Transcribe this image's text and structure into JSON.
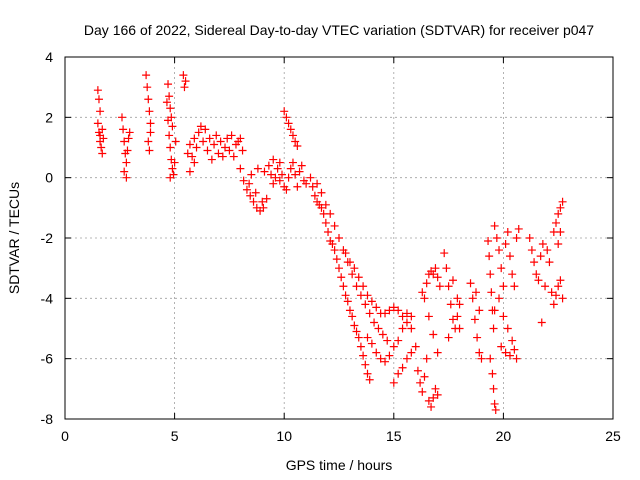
{
  "chart_data": {
    "type": "scatter",
    "title": "Day 166 of 2022, Sidereal Day-to-day VTEC variation (SDTVAR) for receiver p047",
    "xlabel": "GPS time / hours",
    "ylabel": "SDTVAR / TECUs",
    "xlim": [
      0,
      25
    ],
    "ylim": [
      -8,
      4
    ],
    "xticks": [
      0,
      5,
      10,
      15,
      20,
      25
    ],
    "xtick_labels": [
      "0",
      "5",
      "10",
      "15",
      "20",
      "25"
    ],
    "yticks": [
      -8,
      -6,
      -4,
      -2,
      0,
      2,
      4
    ],
    "ytick_labels": [
      "-8",
      "-6",
      "-4",
      "-2",
      "0",
      "2",
      "4"
    ],
    "grid": true,
    "marker": "+",
    "color": "#ff0000",
    "series": [
      {
        "name": "SDTVAR",
        "points": [
          [
            1.5,
            2.9
          ],
          [
            1.55,
            2.6
          ],
          [
            1.6,
            2.2
          ],
          [
            1.5,
            1.8
          ],
          [
            1.55,
            1.5
          ],
          [
            1.6,
            1.2
          ],
          [
            1.65,
            1.0
          ],
          [
            1.7,
            0.8
          ],
          [
            1.6,
            1.4
          ],
          [
            1.7,
            1.6
          ],
          [
            1.75,
            1.3
          ],
          [
            2.6,
            2.0
          ],
          [
            2.65,
            1.6
          ],
          [
            2.7,
            1.2
          ],
          [
            2.75,
            0.8
          ],
          [
            2.8,
            0.5
          ],
          [
            2.7,
            0.2
          ],
          [
            2.85,
            0.9
          ],
          [
            2.9,
            1.3
          ],
          [
            2.95,
            1.5
          ],
          [
            2.8,
            0.0
          ],
          [
            3.7,
            3.4
          ],
          [
            3.75,
            3.0
          ],
          [
            3.8,
            2.6
          ],
          [
            3.85,
            2.2
          ],
          [
            3.9,
            1.8
          ],
          [
            3.8,
            1.2
          ],
          [
            3.85,
            0.9
          ],
          [
            3.9,
            1.5
          ],
          [
            4.7,
            3.1
          ],
          [
            4.75,
            2.7
          ],
          [
            4.8,
            2.3
          ],
          [
            4.85,
            2.0
          ],
          [
            4.9,
            1.7
          ],
          [
            4.75,
            1.4
          ],
          [
            4.8,
            1.0
          ],
          [
            4.85,
            0.6
          ],
          [
            4.9,
            0.3
          ],
          [
            4.95,
            0.1
          ],
          [
            4.8,
            0.0
          ],
          [
            5.0,
            0.5
          ],
          [
            5.05,
            1.2
          ],
          [
            4.65,
            2.5
          ],
          [
            4.7,
            1.9
          ],
          [
            5.4,
            3.4
          ],
          [
            5.5,
            3.2
          ],
          [
            5.45,
            3.0
          ],
          [
            5.6,
            0.8
          ],
          [
            5.7,
            1.1
          ],
          [
            5.8,
            0.7
          ],
          [
            5.9,
            1.3
          ],
          [
            6.0,
            1.0
          ],
          [
            6.1,
            1.5
          ],
          [
            6.2,
            1.7
          ],
          [
            6.3,
            1.2
          ],
          [
            6.4,
            1.6
          ],
          [
            6.5,
            0.9
          ],
          [
            6.6,
            1.3
          ],
          [
            6.7,
            0.6
          ],
          [
            6.8,
            1.1
          ],
          [
            6.9,
            1.4
          ],
          [
            7.0,
            0.8
          ],
          [
            7.1,
            1.2
          ],
          [
            7.2,
            0.7
          ],
          [
            7.3,
            1.0
          ],
          [
            7.4,
            1.3
          ],
          [
            7.5,
            0.9
          ],
          [
            7.6,
            1.4
          ],
          [
            7.7,
            0.7
          ],
          [
            7.8,
            1.1
          ],
          [
            7.9,
            1.2
          ],
          [
            8.0,
            1.3
          ],
          [
            8.1,
            0.9
          ],
          [
            5.7,
            0.2
          ],
          [
            5.9,
            0.5
          ],
          [
            8.0,
            0.3
          ],
          [
            8.15,
            -0.1
          ],
          [
            8.3,
            -0.4
          ],
          [
            8.45,
            -0.6
          ],
          [
            8.6,
            -0.8
          ],
          [
            8.75,
            -1.0
          ],
          [
            8.9,
            -1.1
          ],
          [
            9.05,
            -1.0
          ],
          [
            9.2,
            -0.7
          ],
          [
            8.4,
            -0.2
          ],
          [
            8.7,
            -0.5
          ],
          [
            9.0,
            -0.8
          ],
          [
            8.5,
            0.1
          ],
          [
            8.8,
            0.3
          ],
          [
            9.1,
            0.2
          ],
          [
            9.3,
            0.4
          ],
          [
            9.4,
            0.1
          ],
          [
            9.5,
            -0.2
          ],
          [
            9.6,
            0.0
          ],
          [
            9.7,
            0.3
          ],
          [
            9.8,
            0.5
          ],
          [
            9.9,
            0.1
          ],
          [
            10.0,
            -0.3
          ],
          [
            10.1,
            -0.4
          ],
          [
            10.2,
            0.0
          ],
          [
            10.3,
            0.3
          ],
          [
            10.4,
            0.5
          ],
          [
            10.5,
            0.1
          ],
          [
            10.6,
            -0.3
          ],
          [
            10.7,
            0.2
          ],
          [
            10.8,
            0.4
          ],
          [
            10.9,
            -0.1
          ],
          [
            11.0,
            -0.2
          ],
          [
            9.5,
            0.6
          ],
          [
            9.8,
            -0.1
          ],
          [
            10.0,
            2.2
          ],
          [
            10.1,
            2.0
          ],
          [
            10.2,
            1.8
          ],
          [
            10.3,
            1.6
          ],
          [
            10.4,
            1.4
          ],
          [
            10.5,
            1.2
          ],
          [
            10.6,
            1.05
          ],
          [
            11.2,
            0.0
          ],
          [
            11.3,
            -0.3
          ],
          [
            11.4,
            -0.6
          ],
          [
            11.5,
            -0.8
          ],
          [
            11.6,
            -0.9
          ],
          [
            11.7,
            -1.0
          ],
          [
            11.8,
            -1.2
          ],
          [
            11.9,
            -1.5
          ],
          [
            12.0,
            -1.8
          ],
          [
            12.1,
            -2.1
          ],
          [
            12.2,
            -2.2
          ],
          [
            12.3,
            -2.4
          ],
          [
            12.4,
            -2.7
          ],
          [
            12.5,
            -3.0
          ],
          [
            12.6,
            -3.3
          ],
          [
            12.7,
            -3.6
          ],
          [
            12.8,
            -3.9
          ],
          [
            12.9,
            -4.1
          ],
          [
            13.0,
            -4.4
          ],
          [
            13.1,
            -4.6
          ],
          [
            13.2,
            -4.9
          ],
          [
            13.3,
            -5.1
          ],
          [
            13.4,
            -5.3
          ],
          [
            13.5,
            -5.6
          ],
          [
            13.6,
            -5.9
          ],
          [
            13.7,
            -6.2
          ],
          [
            13.8,
            -6.5
          ],
          [
            13.9,
            -6.7
          ],
          [
            11.5,
            -0.2
          ],
          [
            11.7,
            -0.5
          ],
          [
            11.9,
            -0.9
          ],
          [
            12.1,
            -1.2
          ],
          [
            12.3,
            -1.6
          ],
          [
            12.5,
            -2.0
          ],
          [
            12.7,
            -2.4
          ],
          [
            12.9,
            -2.8
          ],
          [
            13.1,
            -3.2
          ],
          [
            13.3,
            -3.6
          ],
          [
            13.5,
            -3.9
          ],
          [
            13.7,
            -4.2
          ],
          [
            13.9,
            -4.5
          ],
          [
            14.1,
            -4.8
          ],
          [
            14.3,
            -5.0
          ],
          [
            14.5,
            -5.2
          ],
          [
            14.7,
            -5.4
          ],
          [
            12.8,
            -2.5
          ],
          [
            13.0,
            -2.8
          ],
          [
            13.2,
            -3.0
          ],
          [
            13.4,
            -3.3
          ],
          [
            13.6,
            -3.6
          ],
          [
            13.8,
            -3.9
          ],
          [
            14.0,
            -4.1
          ],
          [
            14.2,
            -4.3
          ],
          [
            14.4,
            -4.5
          ],
          [
            14.6,
            -4.5
          ],
          [
            14.8,
            -4.4
          ],
          [
            15.0,
            -4.3
          ],
          [
            15.2,
            -4.4
          ],
          [
            15.4,
            -4.6
          ],
          [
            15.6,
            -4.5
          ],
          [
            15.8,
            -4.6
          ],
          [
            13.8,
            -5.3
          ],
          [
            14.0,
            -5.5
          ],
          [
            14.2,
            -5.8
          ],
          [
            14.4,
            -6.0
          ],
          [
            14.6,
            -6.1
          ],
          [
            14.8,
            -5.9
          ],
          [
            15.0,
            -5.6
          ],
          [
            15.2,
            -5.4
          ],
          [
            15.4,
            -5.0
          ],
          [
            15.6,
            -4.8
          ],
          [
            15.8,
            -5.0
          ],
          [
            15.2,
            -6.5
          ],
          [
            15.4,
            -6.3
          ],
          [
            15.6,
            -6.0
          ],
          [
            15.8,
            -5.8
          ],
          [
            16.0,
            -5.6
          ],
          [
            15.0,
            -6.8
          ],
          [
            16.1,
            -6.4
          ],
          [
            16.2,
            -6.8
          ],
          [
            16.3,
            -7.1
          ],
          [
            16.4,
            -6.6
          ],
          [
            16.5,
            -6.0
          ],
          [
            16.6,
            -7.4
          ],
          [
            16.7,
            -7.6
          ],
          [
            16.8,
            -7.3
          ],
          [
            16.9,
            -7.0
          ],
          [
            17.0,
            -7.2
          ],
          [
            16.4,
            -4.0
          ],
          [
            16.5,
            -3.5
          ],
          [
            16.6,
            -3.2
          ],
          [
            16.7,
            -3.1
          ],
          [
            16.8,
            -3.2
          ],
          [
            16.9,
            -3.0
          ],
          [
            17.0,
            -3.3
          ],
          [
            17.1,
            -3.6
          ],
          [
            16.3,
            -3.8
          ],
          [
            16.6,
            -4.6
          ],
          [
            16.8,
            -5.2
          ],
          [
            17.0,
            -5.8
          ],
          [
            17.3,
            -2.5
          ],
          [
            17.4,
            -3.0
          ],
          [
            17.5,
            -3.6
          ],
          [
            17.6,
            -4.2
          ],
          [
            17.7,
            -4.7
          ],
          [
            17.8,
            -5.0
          ],
          [
            17.9,
            -4.6
          ],
          [
            18.0,
            -4.2
          ],
          [
            17.5,
            -5.3
          ],
          [
            17.7,
            -3.4
          ],
          [
            17.9,
            -4.0
          ],
          [
            18.0,
            -5.0
          ],
          [
            18.5,
            -3.5
          ],
          [
            18.6,
            -4.0
          ],
          [
            18.7,
            -4.7
          ],
          [
            18.8,
            -5.3
          ],
          [
            18.9,
            -5.8
          ],
          [
            19.0,
            -6.0
          ],
          [
            18.75,
            -3.8
          ],
          [
            18.9,
            -4.4
          ],
          [
            19.3,
            -2.1
          ],
          [
            19.35,
            -2.6
          ],
          [
            19.4,
            -3.2
          ],
          [
            19.45,
            -3.8
          ],
          [
            19.5,
            -4.4
          ],
          [
            19.55,
            -5.0
          ],
          [
            19.5,
            -6.5
          ],
          [
            19.55,
            -7.0
          ],
          [
            19.6,
            -7.5
          ],
          [
            19.65,
            -7.7
          ],
          [
            19.4,
            -6.0
          ],
          [
            19.6,
            -1.6
          ],
          [
            19.7,
            -2.0
          ],
          [
            19.8,
            -2.4
          ],
          [
            19.9,
            -3.0
          ],
          [
            20.0,
            -3.6
          ],
          [
            20.1,
            -2.2
          ],
          [
            20.2,
            -1.8
          ],
          [
            20.3,
            -2.6
          ],
          [
            20.4,
            -3.2
          ],
          [
            20.5,
            -3.6
          ],
          [
            20.6,
            -2.0
          ],
          [
            20.7,
            -1.7
          ],
          [
            19.6,
            -4.4
          ],
          [
            19.8,
            -4.0
          ],
          [
            20.0,
            -4.6
          ],
          [
            20.2,
            -5.0
          ],
          [
            20.4,
            -5.4
          ],
          [
            19.9,
            -5.6
          ],
          [
            20.1,
            -5.8
          ],
          [
            20.3,
            -5.9
          ],
          [
            20.5,
            -5.7
          ],
          [
            20.6,
            -6.0
          ],
          [
            21.2,
            -2.0
          ],
          [
            21.3,
            -2.4
          ],
          [
            21.4,
            -2.8
          ],
          [
            21.5,
            -3.2
          ],
          [
            21.6,
            -3.4
          ],
          [
            21.7,
            -2.6
          ],
          [
            21.8,
            -2.2
          ],
          [
            21.75,
            -4.8
          ],
          [
            21.9,
            -3.6
          ],
          [
            22.0,
            -2.4
          ],
          [
            22.1,
            -2.8
          ],
          [
            22.2,
            -3.8
          ],
          [
            22.3,
            -4.2
          ],
          [
            22.4,
            -3.9
          ],
          [
            22.5,
            -3.6
          ],
          [
            22.6,
            -3.4
          ],
          [
            22.7,
            -4.0
          ],
          [
            22.3,
            -1.8
          ],
          [
            22.4,
            -1.5
          ],
          [
            22.5,
            -1.2
          ],
          [
            22.6,
            -1.0
          ],
          [
            22.7,
            -0.8
          ],
          [
            22.5,
            -2.2
          ],
          [
            22.6,
            -1.8
          ]
        ]
      }
    ]
  }
}
